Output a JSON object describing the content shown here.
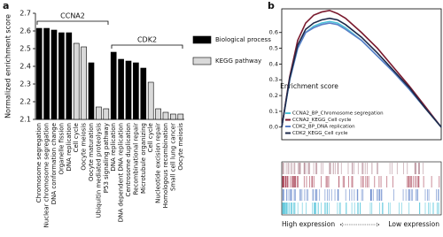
{
  "chart_data": [
    {
      "type": "bar",
      "panel": "a",
      "ylabel": "Normalized enrichment score",
      "categories": [
        "Chromosome segregation",
        "Nuclear chromosome segregation",
        "DNA conformation change",
        "Organelle fission",
        "DNA replication",
        "Cell cycle",
        "Oocyte meiosis",
        "Oocyte maturation",
        "Ubiquitin mediated proteolysis",
        "P53 signaling pathway",
        "DNA replication",
        "DNA dependent DNA replication",
        "Centrosome duplication",
        "Recombinational repair",
        "Microtubule organizing",
        "Cell cycle",
        "Nucleotide excision repair",
        "Homologous recombination",
        "Small cell lung cancer",
        "Oocyte meiosis"
      ],
      "series": [
        {
          "name": "Biological process",
          "color": "#000000",
          "values": [
            2.615,
            2.615,
            2.605,
            2.59,
            2.59,
            null,
            null,
            2.42,
            null,
            null,
            2.48,
            2.44,
            2.43,
            2.42,
            2.39,
            null,
            null,
            null,
            null,
            null
          ]
        },
        {
          "name": "KEGG pathway",
          "color": "#d9d9d9",
          "values": [
            null,
            null,
            null,
            null,
            null,
            2.53,
            2.51,
            null,
            2.17,
            2.16,
            null,
            null,
            null,
            null,
            null,
            2.31,
            2.16,
            2.14,
            2.13,
            2.13
          ]
        }
      ],
      "groups": [
        {
          "label": "CCNA2",
          "first": 0,
          "last": 9
        },
        {
          "label": "CDK2",
          "first": 10,
          "last": 19
        }
      ],
      "ylim": [
        2.1,
        2.7
      ],
      "yticks": [
        2.1,
        2.2,
        2.3,
        2.4,
        2.5,
        2.6,
        2.7
      ]
    },
    {
      "type": "line",
      "panel": "b",
      "ylabel": "Enrichment score",
      "xlabel_left": "High expression",
      "xlabel_right": "Low expression",
      "x": [
        0,
        0.05,
        0.1,
        0.15,
        0.2,
        0.25,
        0.3,
        0.35,
        0.4,
        0.5,
        0.6,
        0.7,
        0.8,
        0.9,
        1
      ],
      "xlim": [
        0,
        1
      ],
      "series": [
        {
          "name": "CCNA2_BP_Chromosome segregation",
          "color": "#4fc3d9",
          "values": [
            0,
            0.3,
            0.5,
            0.6,
            0.64,
            0.66,
            0.67,
            0.66,
            0.63,
            0.55,
            0.45,
            0.35,
            0.24,
            0.12,
            0
          ]
        },
        {
          "name": "CCNA2_KEGG_Cell cycle",
          "color": "#7a1a2e",
          "values": [
            0,
            0.32,
            0.55,
            0.66,
            0.71,
            0.73,
            0.74,
            0.72,
            0.69,
            0.6,
            0.5,
            0.38,
            0.26,
            0.13,
            0
          ]
        },
        {
          "name": "CDK2_BP_DNA replication",
          "color": "#5b7fc7",
          "values": [
            0,
            0.3,
            0.5,
            0.6,
            0.63,
            0.65,
            0.66,
            0.65,
            0.62,
            0.55,
            0.45,
            0.35,
            0.24,
            0.12,
            0
          ]
        },
        {
          "name": "CDK2_KEGG_Cell cycle",
          "color": "#1d2a4a",
          "values": [
            0,
            0.31,
            0.52,
            0.62,
            0.66,
            0.68,
            0.69,
            0.68,
            0.65,
            0.57,
            0.47,
            0.36,
            0.25,
            0.12,
            0
          ]
        }
      ],
      "ylim": [
        -0.08,
        0.75
      ],
      "yticks": [
        {
          "value": 0,
          "label": "0.0"
        },
        0.1,
        0.2,
        0.3,
        0.4,
        0.5,
        0.6
      ]
    }
  ]
}
